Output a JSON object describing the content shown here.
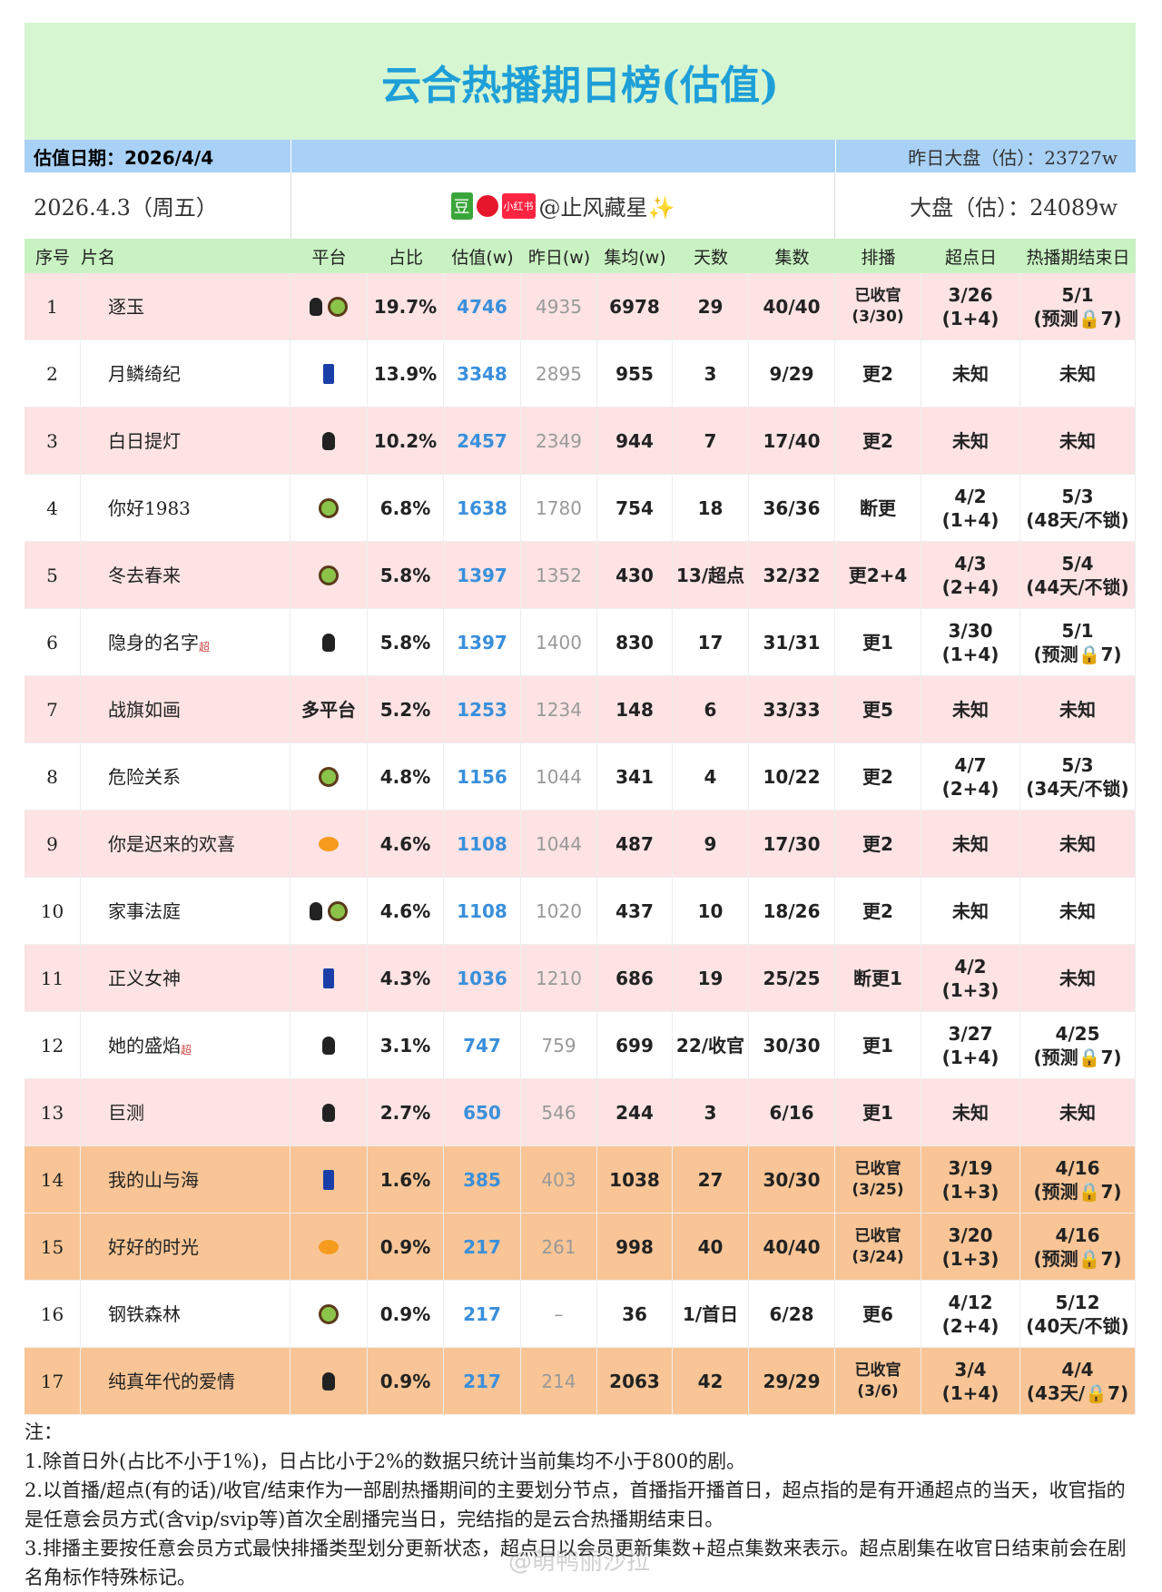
{
  "header": {
    "title": "云合热播期日榜(估值)"
  },
  "info": {
    "date_label": "估值日期：2026/4/4",
    "yesterday_total": "昨日大盘（估）：23727w",
    "date": "2026.4.3（周五）",
    "source": "@止风藏星✨",
    "total": "大盘（估）：24089w"
  },
  "table": {
    "columns": [
      "序号",
      "片名",
      "平台",
      "占比",
      "估值(w)",
      "昨日(w)",
      "集均(w)",
      "天数",
      "集数",
      "排播",
      "超点日",
      "热播期结束日"
    ],
    "rows": [
      {
        "no": 1,
        "name": "逐玉",
        "platform": null,
        "pct": "19.7%",
        "est": 4746,
        "yday": 4935,
        "avg": 6978,
        "days": 29,
        "eps": "40/40",
        "schedule": "已收官\n(3/30)",
        "peak": "3/26\n(1+4)",
        "end": "5/1\n(预测🔒7)"
      },
      {
        "no": 2,
        "name": "月鳞绮纪",
        "platform": null,
        "pct": "13.9%",
        "est": 3348,
        "yday": 2895,
        "avg": 955,
        "days": 3,
        "eps": "9/29",
        "schedule": "更2",
        "peak": "未知",
        "end": "未知"
      },
      {
        "no": 3,
        "name": "白日提灯",
        "platform": null,
        "pct": "10.2%",
        "est": 2457,
        "yday": 2349,
        "avg": 944,
        "days": 7,
        "eps": "17/40",
        "schedule": "更2",
        "peak": "未知",
        "end": "未知"
      },
      {
        "no": 4,
        "name": "你好1983",
        "platform": null,
        "pct": "6.8%",
        "est": 1638,
        "yday": 1780,
        "avg": 754,
        "days": 18,
        "eps": "36/36",
        "schedule": "断更",
        "peak": "4/2\n(1+4)",
        "end": "5/3\n(48天/不锁)"
      },
      {
        "no": 5,
        "name": "冬去春来",
        "platform": null,
        "pct": "5.8%",
        "est": 1397,
        "yday": 1352,
        "avg": 430,
        "days": "13/超点",
        "eps": "32/32",
        "schedule": "更2+4",
        "peak": "4/3\n(2+4)",
        "end": "5/4\n(44天/不锁)"
      },
      {
        "no": 6,
        "name": "隐身的名字",
        "sup": "超",
        "platform": null,
        "pct": "5.8%",
        "est": 1397,
        "yday": 1400,
        "avg": 830,
        "days": 17,
        "eps": "31/31",
        "schedule": "更1",
        "peak": "3/30\n(1+4)",
        "end": "5/1\n(预测🔒7)"
      },
      {
        "no": 7,
        "name": "战旗如画",
        "platform": "多平台",
        "pct": "5.2%",
        "est": 1253,
        "yday": 1234,
        "avg": 148,
        "days": 6,
        "eps": "33/33",
        "schedule": "更5",
        "peak": "未知",
        "end": "未知"
      },
      {
        "no": 8,
        "name": "危险关系",
        "platform": null,
        "pct": "4.8%",
        "est": 1156,
        "yday": 1044,
        "avg": 341,
        "days": 4,
        "eps": "10/22",
        "schedule": "更2",
        "peak": "4/7\n(2+4)",
        "end": "5/3\n(34天/不锁)"
      },
      {
        "no": 9,
        "name": "你是迟来的欢喜",
        "platform": null,
        "pct": "4.6%",
        "est": 1108,
        "yday": 1044,
        "avg": 487,
        "days": 9,
        "eps": "17/30",
        "schedule": "更2",
        "peak": "未知",
        "end": "未知"
      },
      {
        "no": 10,
        "name": "家事法庭",
        "platform": null,
        "pct": "4.6%",
        "est": 1108,
        "yday": 1020,
        "avg": 437,
        "days": 10,
        "eps": "18/26",
        "schedule": "更2",
        "peak": "未知",
        "end": "未知"
      },
      {
        "no": 11,
        "name": "正义女神",
        "platform": null,
        "pct": "4.3%",
        "est": 1036,
        "yday": 1210,
        "avg": 686,
        "days": 19,
        "eps": "25/25",
        "schedule": "断更1",
        "peak": "4/2\n(1+3)",
        "end": "未知"
      },
      {
        "no": 12,
        "name": "她的盛焰",
        "sup": "超",
        "platform": null,
        "pct": "3.1%",
        "est": 747,
        "yday": 759,
        "avg": 699,
        "days": "22/收官",
        "eps": "30/30",
        "schedule": "更1",
        "peak": "3/27\n(1+4)",
        "end": "4/25\n(预测🔒7)"
      },
      {
        "no": 13,
        "name": "巨测",
        "platform": null,
        "pct": "2.7%",
        "est": 650,
        "yday": 546,
        "avg": 244,
        "days": 3,
        "eps": "6/16",
        "schedule": "更1",
        "peak": "未知",
        "end": "未知"
      },
      {
        "no": 14,
        "name": "我的山与海",
        "platform": null,
        "pct": "1.6%",
        "est": 385,
        "yday": 403,
        "avg": 1038,
        "days": 27,
        "eps": "30/30",
        "schedule": "已收官\n(3/25)",
        "peak": "3/19\n(1+3)",
        "end": "4/16\n(预测🔒7)"
      },
      {
        "no": 15,
        "name": "好好的时光",
        "platform": null,
        "pct": "0.9%",
        "est": 217,
        "yday": 261,
        "avg": 998,
        "days": 40,
        "eps": "40/40",
        "schedule": "已收官\n(3/24)",
        "peak": "3/20\n(1+3)",
        "end": "4/16\n(预测🔒7)"
      },
      {
        "no": 16,
        "name": "钢铁森林",
        "platform": null,
        "pct": "0.9%",
        "est": 217,
        "yday": "–",
        "avg": 36,
        "days": "1/首日",
        "eps": "6/28",
        "schedule": "更6",
        "peak": "4/12\n(2+4)",
        "end": "5/12\n(40天/不锁)"
      },
      {
        "no": 17,
        "name": "纯真年代的爱情",
        "platform": null,
        "pct": "0.9%",
        "est": 217,
        "yday": 214,
        "avg": 2063,
        "days": 42,
        "eps": "29/29",
        "schedule": "已收官\n(3/6)",
        "peak": "3/4\n(1+4)",
        "end": "4/4\n(43天/🔒7)"
      }
    ]
  },
  "notes": {
    "title": "注：",
    "items": [
      "1.除首日外(占比不小于1%)，日占比小于2%的数据只统计当前集均不小于800的剧。",
      "2.以首播/超点(有的话)/收官/结束作为一部剧热播期间的主要划分节点，首播指开播首日，超点指的是有开通超点的当天，收官指的是任意会员方式(含vip/svip等)首次全剧播完当日，完结指的是云合热播期结束日。",
      "3.排播主要按任意会员方式最快排播类型划分更新状态，超点日以会员更新集数+超点集数来表示。超点剧集在收官日结束前会在剧名角标作特殊标记。"
    ]
  },
  "watermark": "@萌鸭丽沙拉"
}
